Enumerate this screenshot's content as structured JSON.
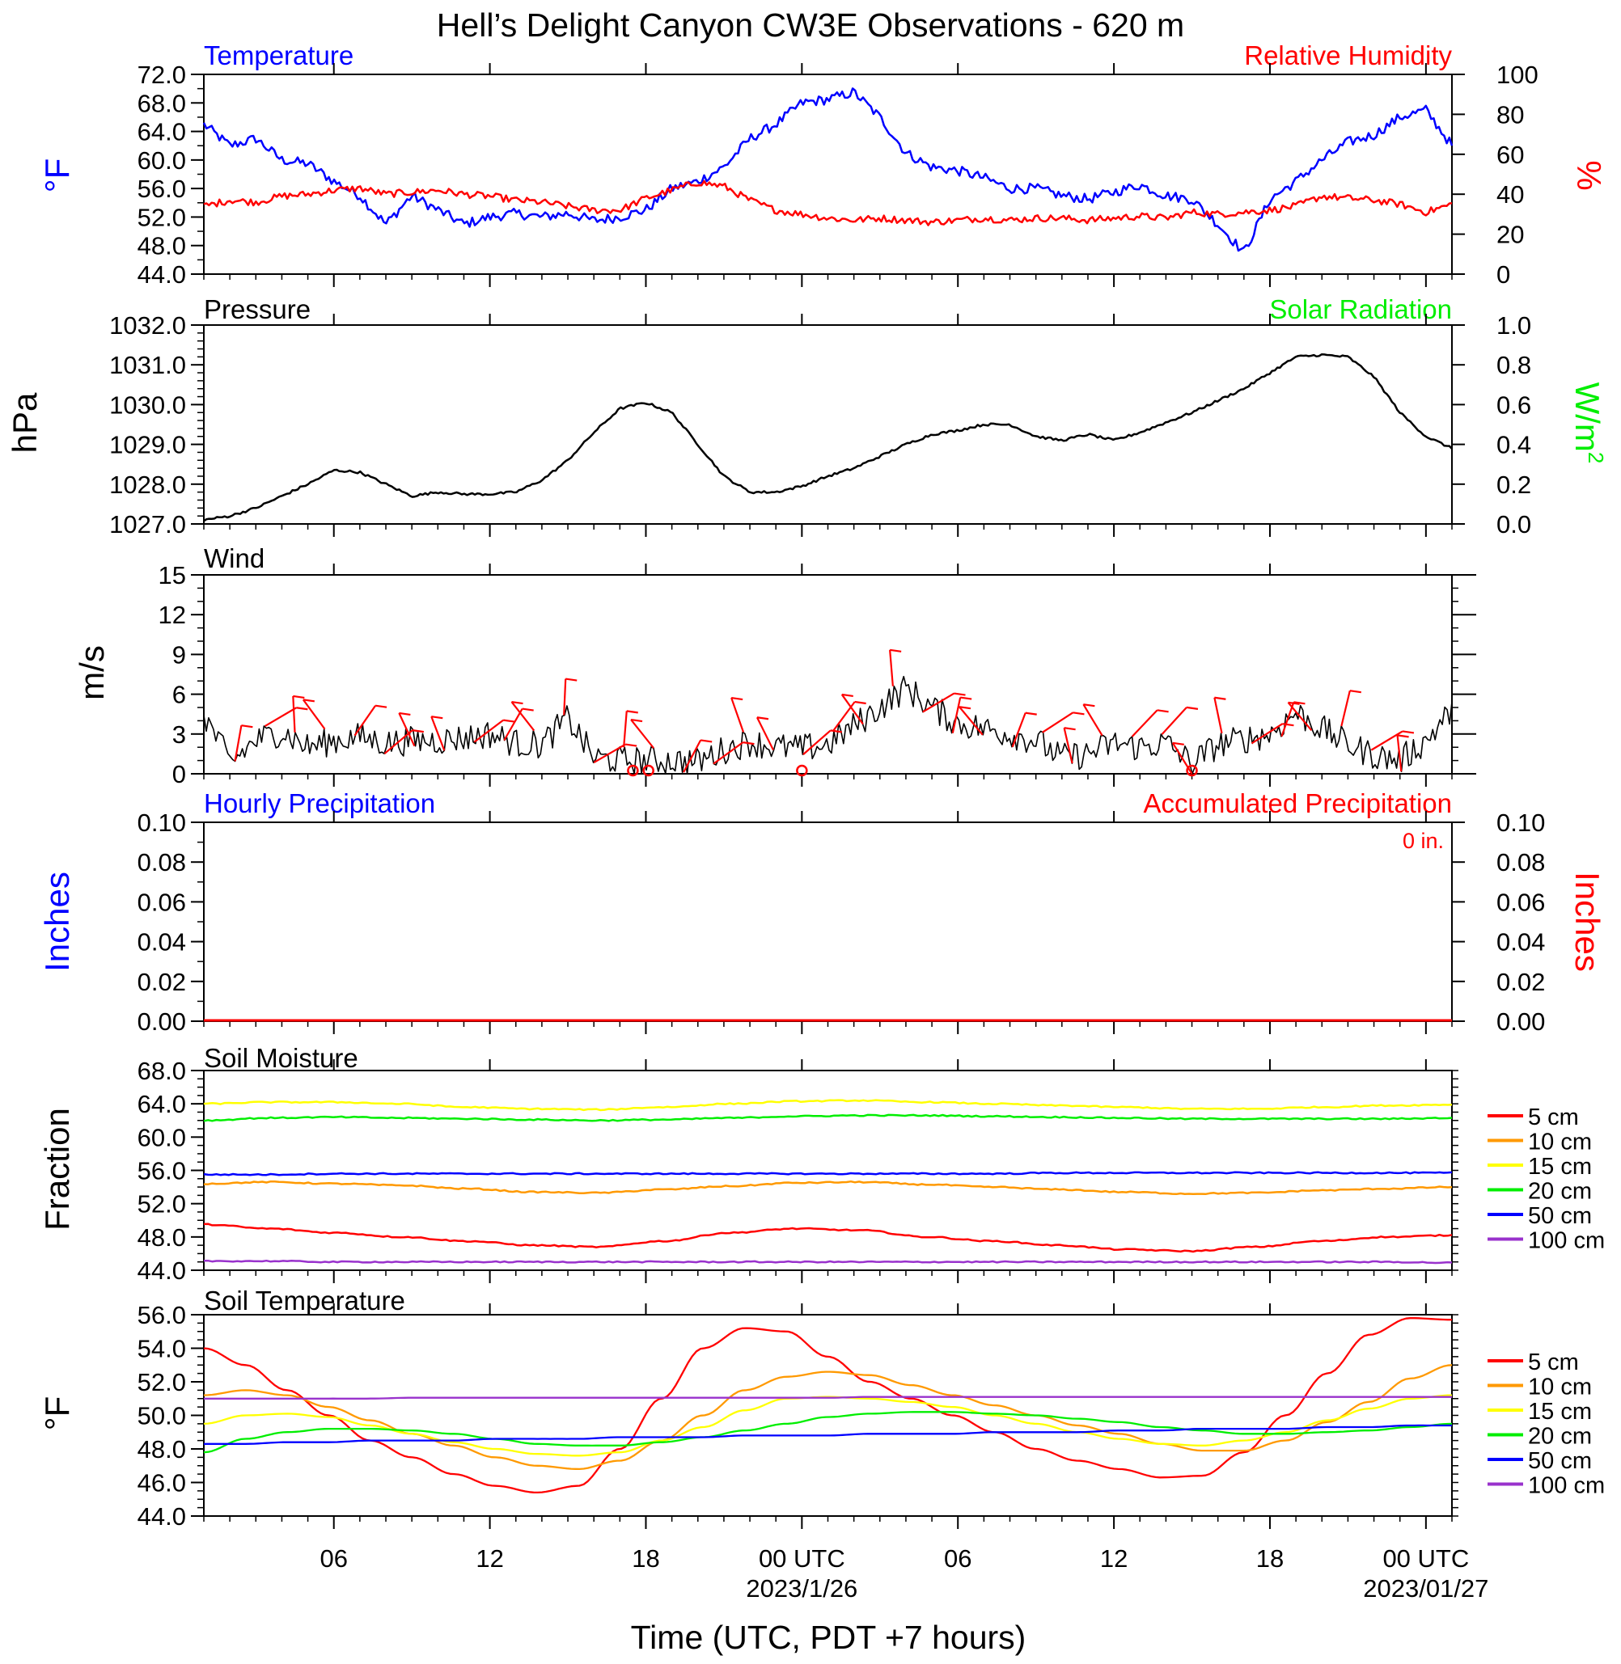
{
  "title": "Hell’s Delight Canyon CW3E Observations - 620 m",
  "xaxis": {
    "label": "Time (UTC, PDT +7 hours)",
    "range_hours": [
      -5,
      43
    ],
    "ticks": [
      {
        "h": 0,
        "label": "06",
        "date": ""
      },
      {
        "h": 6,
        "label": "12",
        "date": ""
      },
      {
        "h": 12,
        "label": "18",
        "date": ""
      },
      {
        "h": 18,
        "label": "00 UTC",
        "date": "2023/1/26"
      },
      {
        "h": 24,
        "label": "06",
        "date": ""
      },
      {
        "h": 30,
        "label": "12",
        "date": ""
      },
      {
        "h": 36,
        "label": "18",
        "date": ""
      },
      {
        "h": 42,
        "label": "00 UTC",
        "date": "2023/01/27"
      }
    ]
  },
  "panels": {
    "temp": {
      "left_title": "Temperature",
      "right_title": "Relative Humidity",
      "ylabel_left": "°F",
      "ylabel_right": "%",
      "yticks_left": [
        "72.0",
        "68.0",
        "64.0",
        "60.0",
        "56.0",
        "52.0",
        "48.0",
        "44.0"
      ],
      "yticks_right": [
        "100",
        "80",
        "60",
        "40",
        "20",
        "0"
      ]
    },
    "pres": {
      "left_title": "Pressure",
      "right_title": "Solar Radiation",
      "ylabel_left": "hPa",
      "ylabel_right": "W/m",
      "ylabel_right_sup": "2",
      "yticks_left": [
        "1032.0",
        "1031.0",
        "1030.0",
        "1029.0",
        "1028.0",
        "1027.0"
      ],
      "yticks_right": [
        "1.0",
        "0.8",
        "0.6",
        "0.4",
        "0.2",
        "0.0"
      ]
    },
    "wind": {
      "left_title": "Wind",
      "ylabel_left": "m/s",
      "yticks_left": [
        "15",
        "12",
        "9",
        "6",
        "3",
        "0"
      ]
    },
    "precip": {
      "left_title": "Hourly Precipitation",
      "right_title": "Accumulated Precipitation",
      "accum_label": "0 in.",
      "ylabel_left": "Inches",
      "ylabel_right": "Inches",
      "yticks_left": [
        "0.10",
        "0.08",
        "0.06",
        "0.04",
        "0.02",
        "0.00"
      ],
      "yticks_right": [
        "0.10",
        "0.08",
        "0.06",
        "0.04",
        "0.02",
        "0.00"
      ]
    },
    "soilm": {
      "left_title": "Soil Moisture",
      "ylabel_left": "Fraction",
      "yticks_left": [
        "68.0",
        "64.0",
        "60.0",
        "56.0",
        "52.0",
        "48.0",
        "44.0"
      ],
      "legend": [
        "5 cm",
        "10 cm",
        "15 cm",
        "20 cm",
        "50 cm",
        "100 cm"
      ]
    },
    "soilt": {
      "left_title": "Soil Temperature",
      "ylabel_left": "°F",
      "yticks_left": [
        "56.0",
        "54.0",
        "52.0",
        "50.0",
        "48.0",
        "46.0",
        "44.0"
      ],
      "legend": [
        "5 cm",
        "10 cm",
        "15 cm",
        "20 cm",
        "50 cm",
        "100 cm"
      ]
    }
  },
  "colors": {
    "temperature": "#0000ff",
    "humidity": "#ff0000",
    "pressure": "#000000",
    "solar": "#00ff00",
    "wind": "#000000",
    "barb": "#ff0000",
    "depth": [
      "#ff0000",
      "#ff9900",
      "#ffff00",
      "#00ee00",
      "#0000ff",
      "#9932cc"
    ]
  },
  "chart_data": [
    {
      "type": "line",
      "title": "Temperature / Relative Humidity",
      "x_hours_since_06utc_jan25": [
        -5,
        -4,
        -3,
        -2,
        -1,
        0,
        1,
        2,
        3,
        4,
        5,
        6,
        7,
        8,
        9,
        10,
        11,
        12,
        13,
        14,
        15,
        16,
        17,
        18,
        19,
        20,
        21,
        22,
        23,
        24,
        25,
        26,
        27,
        28,
        29,
        30,
        31,
        32,
        33,
        34,
        35,
        36,
        37,
        38,
        39,
        40,
        41,
        42,
        43
      ],
      "series": [
        {
          "name": "Temperature",
          "unit": "°F",
          "ylim": [
            44,
            72
          ],
          "values": [
            65,
            62,
            63,
            60,
            59.5,
            57,
            55,
            51,
            55,
            53,
            51,
            52,
            52.5,
            52,
            52.5,
            51.5,
            52,
            53,
            56,
            57,
            59,
            63,
            65,
            68,
            68.5,
            69.5,
            66,
            61,
            59,
            58.5,
            57.5,
            56,
            56,
            55,
            54.5,
            55.5,
            56.5,
            55,
            54.5,
            51,
            47,
            54.5,
            57,
            60,
            62.5,
            63.5,
            66,
            67,
            62
          ]
        },
        {
          "name": "Relative Humidity",
          "unit": "%",
          "ylim": [
            0,
            100
          ],
          "values": [
            34,
            37,
            36,
            39,
            40,
            42,
            43,
            40,
            41,
            42,
            40,
            39,
            37,
            36,
            34,
            32,
            32,
            38,
            42,
            46,
            44,
            37,
            32,
            30,
            28,
            27,
            28,
            27,
            26,
            27,
            28,
            27,
            28,
            28,
            27,
            28,
            29,
            28,
            31,
            30,
            31,
            32,
            34,
            39,
            38,
            37,
            35,
            31,
            35
          ]
        }
      ]
    },
    {
      "type": "line",
      "title": "Pressure / Solar Radiation",
      "series": [
        {
          "name": "Pressure",
          "unit": "hPa",
          "ylim": [
            1027,
            1032
          ],
          "values": [
            1027.1,
            1027.2,
            1027.4,
            1027.7,
            1028.0,
            1028.35,
            1028.3,
            1028.0,
            1027.7,
            1027.8,
            1027.75,
            1027.75,
            1027.8,
            1028.1,
            1028.6,
            1029.3,
            1029.9,
            1030.05,
            1029.8,
            1029.0,
            1028.2,
            1027.8,
            1027.8,
            1027.95,
            1028.2,
            1028.4,
            1028.7,
            1029.0,
            1029.25,
            1029.35,
            1029.5,
            1029.5,
            1029.2,
            1029.1,
            1029.25,
            1029.1,
            1029.3,
            1029.55,
            1029.8,
            1030.1,
            1030.4,
            1030.8,
            1031.2,
            1031.25,
            1031.2,
            1030.7,
            1029.8,
            1029.2,
            1028.9
          ]
        }
      ]
    },
    {
      "type": "line",
      "title": "Wind",
      "series": [
        {
          "name": "Wind speed",
          "unit": "m/s",
          "ylim": [
            0,
            15
          ],
          "values": [
            4.5,
            0.8,
            2.5,
            3.2,
            2,
            2.5,
            2.8,
            2.3,
            2.5,
            2.5,
            2.7,
            3,
            2.3,
            2.2,
            4.2,
            1.2,
            1.0,
            1.0,
            1.0,
            0.9,
            1.8,
            2.4,
            2.0,
            1.9,
            2.2,
            3.6,
            5.0,
            6.5,
            5.0,
            3.8,
            3.4,
            3.0,
            2.5,
            1.2,
            1.5,
            2.3,
            2.0,
            2.3,
            0.8,
            2.2,
            2.6,
            3.0,
            4.6,
            3.4,
            2.2,
            1.4,
            1.0,
            2.5,
            4.8
          ]
        }
      ]
    },
    {
      "type": "line",
      "title": "Hourly Precipitation / Accumulated Precipitation",
      "series": [
        {
          "name": "Hourly Precipitation",
          "unit": "in",
          "ylim": [
            0,
            0.1
          ],
          "values": [
            0
          ]
        },
        {
          "name": "Accumulated Precipitation",
          "unit": "in",
          "ylim": [
            0,
            0.1
          ],
          "values": [
            0
          ]
        }
      ]
    },
    {
      "type": "line",
      "title": "Soil Moisture",
      "ylim": [
        44,
        68
      ],
      "series": [
        {
          "name": "5 cm",
          "values": [
            49.5,
            49,
            48.5,
            48,
            47.5,
            47,
            46.8,
            47.5,
            48.5,
            49,
            48.8,
            48,
            47.5,
            47,
            46.5,
            46.3,
            46.8,
            47.5,
            48,
            48.2
          ]
        },
        {
          "name": "10 cm",
          "values": [
            54.4,
            54.6,
            54.4,
            54.2,
            53.8,
            53.4,
            53.3,
            53.7,
            54.1,
            54.5,
            54.6,
            54.3,
            54.0,
            53.7,
            53.4,
            53.2,
            53.3,
            53.6,
            53.8,
            54.0
          ]
        },
        {
          "name": "15 cm",
          "values": [
            64.0,
            64.2,
            64.2,
            64.0,
            63.6,
            63.4,
            63.3,
            63.6,
            64.0,
            64.3,
            64.4,
            64.2,
            64.0,
            63.8,
            63.6,
            63.4,
            63.4,
            63.6,
            63.8,
            63.9
          ]
        },
        {
          "name": "20 cm",
          "values": [
            62.0,
            62.3,
            62.4,
            62.3,
            62.2,
            62.1,
            62.0,
            62.1,
            62.3,
            62.5,
            62.6,
            62.6,
            62.5,
            62.4,
            62.3,
            62.2,
            62.2,
            62.2,
            62.2,
            62.3
          ]
        },
        {
          "name": "50 cm",
          "values": [
            55.5,
            55.5,
            55.6,
            55.6,
            55.6,
            55.6,
            55.6,
            55.6,
            55.6,
            55.6,
            55.6,
            55.6,
            55.6,
            55.7,
            55.7,
            55.7,
            55.7,
            55.7,
            55.7,
            55.7
          ]
        },
        {
          "name": "100 cm",
          "values": [
            45.1,
            45.1,
            45.0,
            45.0,
            45.0,
            45.0,
            45.0,
            45.0,
            45.0,
            45.0,
            45.0,
            45.0,
            45.0,
            45.0,
            45.0,
            45.0,
            45.0,
            45.0,
            45.0,
            44.9
          ]
        }
      ]
    },
    {
      "type": "line",
      "title": "Soil Temperature",
      "ylim": [
        44,
        56
      ],
      "series": [
        {
          "name": "5 cm",
          "values": [
            54.0,
            53.0,
            51.5,
            50.0,
            48.5,
            47.5,
            46.5,
            45.8,
            45.4,
            45.8,
            48.0,
            51.0,
            54.0,
            55.2,
            55.0,
            53.5,
            52.0,
            51.0,
            50.0,
            49.0,
            48.0,
            47.3,
            46.8,
            46.3,
            46.4,
            47.8,
            50.0,
            52.5,
            54.8,
            55.8,
            55.7
          ]
        },
        {
          "name": "10 cm",
          "values": [
            51.2,
            51.5,
            51.2,
            50.5,
            49.7,
            48.9,
            48.2,
            47.5,
            47.0,
            46.8,
            47.3,
            48.5,
            50.0,
            51.5,
            52.3,
            52.6,
            52.4,
            51.8,
            51.2,
            50.6,
            50.0,
            49.4,
            48.9,
            48.3,
            47.9,
            47.9,
            48.5,
            49.6,
            50.8,
            52.2,
            53.0
          ]
        },
        {
          "name": "15 cm",
          "values": [
            49.5,
            50.0,
            50.1,
            49.9,
            49.4,
            48.9,
            48.4,
            48.0,
            47.7,
            47.6,
            47.8,
            48.5,
            49.3,
            50.3,
            51.0,
            51.1,
            51.0,
            50.8,
            50.5,
            50.0,
            49.5,
            49.0,
            48.6,
            48.3,
            48.2,
            48.5,
            49.0,
            49.7,
            50.4,
            51.0,
            51.2
          ]
        },
        {
          "name": "20 cm",
          "values": [
            47.8,
            48.6,
            49.0,
            49.2,
            49.2,
            49.1,
            48.9,
            48.6,
            48.3,
            48.2,
            48.2,
            48.4,
            48.7,
            49.1,
            49.5,
            49.9,
            50.1,
            50.2,
            50.2,
            50.1,
            50.0,
            49.8,
            49.6,
            49.3,
            49.1,
            48.9,
            48.9,
            49.0,
            49.1,
            49.3,
            49.5
          ]
        },
        {
          "name": "50 cm",
          "values": [
            48.3,
            48.3,
            48.4,
            48.4,
            48.5,
            48.5,
            48.5,
            48.6,
            48.6,
            48.6,
            48.7,
            48.7,
            48.7,
            48.8,
            48.8,
            48.8,
            48.9,
            48.9,
            48.9,
            49.0,
            49.0,
            49.0,
            49.1,
            49.1,
            49.2,
            49.2,
            49.2,
            49.3,
            49.3,
            49.4,
            49.4
          ]
        },
        {
          "name": "100 cm",
          "values": [
            51.0,
            51.0,
            51.0,
            51.0,
            51.0,
            51.05,
            51.05,
            51.05,
            51.05,
            51.05,
            51.05,
            51.05,
            51.05,
            51.05,
            51.05,
            51.05,
            51.1,
            51.1,
            51.1,
            51.1,
            51.1,
            51.1,
            51.1,
            51.1,
            51.1,
            51.1,
            51.1,
            51.1,
            51.1,
            51.1,
            51.1
          ]
        }
      ]
    }
  ]
}
